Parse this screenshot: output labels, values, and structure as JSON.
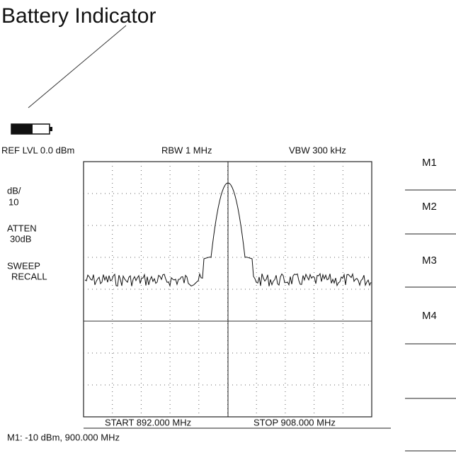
{
  "callout": "Battery Indicator",
  "header": {
    "ref_level": "REF LVL 0.0 dBm",
    "rbw": "RBW 1 MHz",
    "vbw": "VBW 300 kHz"
  },
  "side_labels": [
    "dB/",
    "10",
    "ATTEN",
    "30dB",
    "SWEEP",
    "RECALL"
  ],
  "footer": {
    "start": "START 892.000 MHz",
    "stop": "STOP 908.000 MHz"
  },
  "marker_readout": "M1: -10 dBm, 900.000 MHz",
  "softkeys": [
    "M1",
    "M2",
    "M3",
    "M4"
  ]
}
